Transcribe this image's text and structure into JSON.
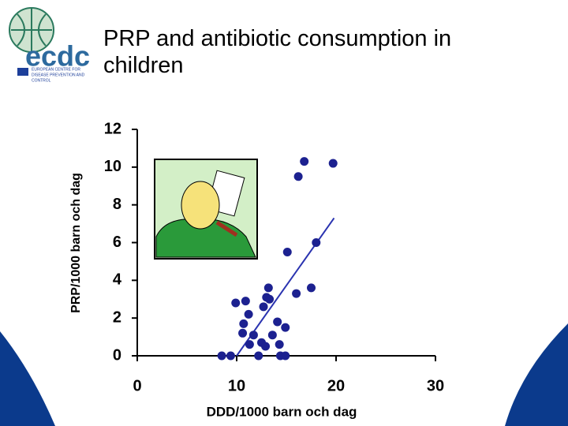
{
  "logo": {
    "name": "ecdc",
    "text": [
      "EUROPEAN CENTRE FOR",
      "DISEASE PREVENTION AND",
      "CONTROL"
    ]
  },
  "chart_data": {
    "type": "scatter",
    "title": "PRP and antibiotic consumption in children",
    "x_label": "DDD/1000 barn och dag",
    "y_label": "PRP/1000 barn och dag",
    "x": [
      8.5,
      9.4,
      9.9,
      10.9,
      10.6,
      10.7,
      11.2,
      11.7,
      11.3,
      12.2,
      12.5,
      12.9,
      13.0,
      12.7,
      13.2,
      13.3,
      13.6,
      14.1,
      14.3,
      14.4,
      14.9,
      14.9,
      15.1,
      16.0,
      16.2,
      16.8,
      17.5,
      18.0,
      19.7
    ],
    "values": [
      0,
      0,
      2.8,
      2.9,
      1.2,
      1.7,
      2.2,
      1.1,
      0.6,
      0,
      0.7,
      0.5,
      3.1,
      2.6,
      3.6,
      3.0,
      1.1,
      1.8,
      0.6,
      0,
      0,
      1.5,
      5.5,
      3.3,
      9.5,
      10.3,
      3.6,
      6.0,
      10.2
    ],
    "color": "#1c2190",
    "trendline": {
      "x": [
        10,
        19.8
      ],
      "y": [
        0,
        7.3
      ],
      "color": "#2a33b0"
    },
    "xlim": [
      0,
      30
    ],
    "ylim": [
      0,
      12
    ],
    "xticks": [
      0,
      10,
      20,
      30
    ],
    "yticks": [
      0,
      2,
      4,
      6,
      8,
      10,
      12
    ]
  }
}
